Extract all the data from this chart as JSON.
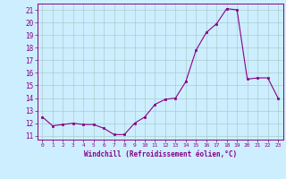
{
  "x": [
    0,
    1,
    2,
    3,
    4,
    5,
    6,
    7,
    8,
    9,
    10,
    11,
    12,
    13,
    14,
    15,
    16,
    17,
    18,
    19,
    20,
    21,
    22,
    23
  ],
  "y": [
    12.5,
    11.8,
    11.9,
    12.0,
    11.9,
    11.9,
    11.6,
    11.1,
    11.1,
    12.0,
    12.5,
    13.5,
    13.9,
    14.0,
    15.3,
    17.8,
    19.2,
    19.9,
    21.1,
    21.0,
    15.5,
    15.6,
    15.6,
    14.0
  ],
  "xlabel": "Windchill (Refroidissement éolien,°C)",
  "xtick_labels": [
    "0",
    "1",
    "2",
    "3",
    "4",
    "5",
    "6",
    "7",
    "8",
    "9",
    "10",
    "11",
    "12",
    "13",
    "14",
    "15",
    "16",
    "17",
    "18",
    "19",
    "20",
    "21",
    "22",
    "23"
  ],
  "ytick_labels": [
    "11",
    "12",
    "13",
    "14",
    "15",
    "16",
    "17",
    "18",
    "19",
    "20",
    "21"
  ],
  "yticks": [
    11,
    12,
    13,
    14,
    15,
    16,
    17,
    18,
    19,
    20,
    21
  ],
  "ylim": [
    10.7,
    21.5
  ],
  "xlim": [
    -0.5,
    23.5
  ],
  "line_color": "#880088",
  "marker_color": "#880088",
  "bg_color": "#cceeff",
  "grid_color": "#aacccc",
  "xlabel_color": "#880088",
  "tick_color": "#880088"
}
